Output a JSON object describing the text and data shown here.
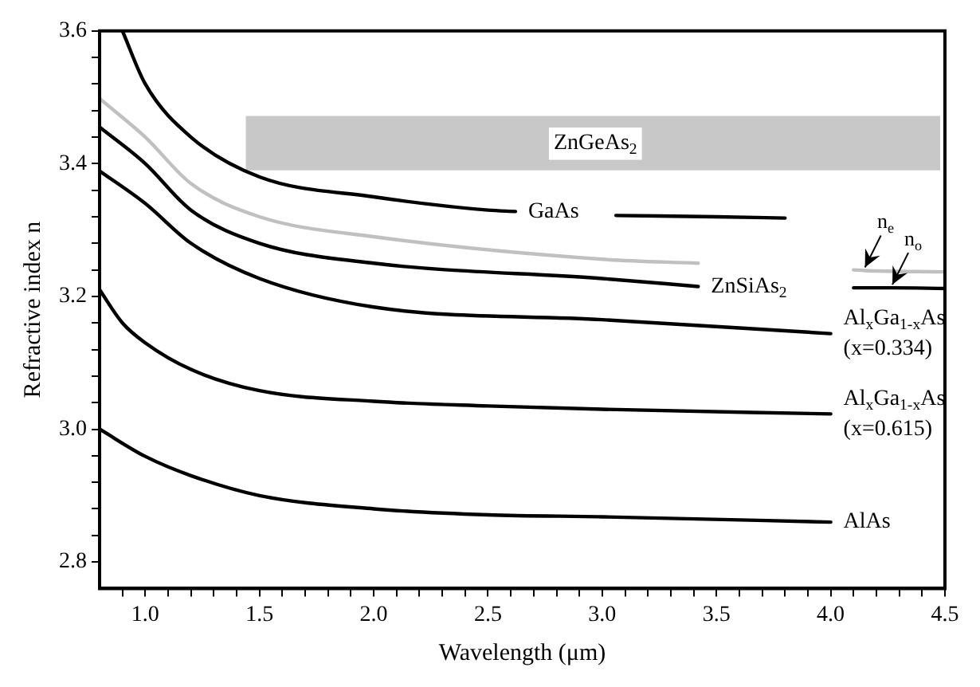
{
  "chart_data": {
    "type": "line",
    "xlabel": "Wavelength (μm)",
    "ylabel": "Refractive index n",
    "xlim": [
      0.8,
      4.5
    ],
    "ylim": [
      2.76,
      3.6
    ],
    "xticks": [
      {
        "value": 0.9,
        "label": null
      },
      {
        "value": 1.0,
        "label": "1.0"
      },
      {
        "value": 1.1,
        "label": null
      },
      {
        "value": 1.2,
        "label": null
      },
      {
        "value": 1.3,
        "label": null
      },
      {
        "value": 1.4,
        "label": null
      },
      1.5,
      {
        "value": 1.6,
        "label": null
      },
      {
        "value": 1.7,
        "label": null
      },
      {
        "value": 1.8,
        "label": null
      },
      {
        "value": 1.9,
        "label": null
      },
      {
        "value": 2.0,
        "label": "2.0"
      },
      {
        "value": 2.1,
        "label": null
      },
      {
        "value": 2.2,
        "label": null
      },
      {
        "value": 2.3,
        "label": null
      },
      {
        "value": 2.4,
        "label": null
      },
      2.5,
      {
        "value": 2.6,
        "label": null
      },
      {
        "value": 2.7,
        "label": null
      },
      {
        "value": 2.8,
        "label": null
      },
      {
        "value": 2.9,
        "label": null
      },
      {
        "value": 3.0,
        "label": "3.0"
      },
      {
        "value": 3.1,
        "label": null
      },
      {
        "value": 3.2,
        "label": null
      },
      {
        "value": 3.3,
        "label": null
      },
      {
        "value": 3.4,
        "label": null
      },
      3.5,
      {
        "value": 3.6,
        "label": null
      },
      {
        "value": 3.7,
        "label": null
      },
      {
        "value": 3.8,
        "label": null
      },
      {
        "value": 3.9,
        "label": null
      },
      {
        "value": 4.0,
        "label": "4.0"
      },
      {
        "value": 4.1,
        "label": null
      },
      {
        "value": 4.2,
        "label": null
      },
      {
        "value": 4.3,
        "label": null
      },
      {
        "value": 4.4,
        "label": null
      },
      4.5
    ],
    "yticks": [
      2.8,
      {
        "value": 2.84,
        "label": null
      },
      {
        "value": 2.88,
        "label": null
      },
      {
        "value": 2.92,
        "label": null
      },
      {
        "value": 2.96,
        "label": null
      },
      {
        "value": 3.0,
        "label": "3.0"
      },
      {
        "value": 3.04,
        "label": null
      },
      {
        "value": 3.08,
        "label": null
      },
      {
        "value": 3.12,
        "label": null
      },
      {
        "value": 3.16,
        "label": null
      },
      3.2,
      {
        "value": 3.24,
        "label": null
      },
      {
        "value": 3.28,
        "label": null
      },
      {
        "value": 3.32,
        "label": null
      },
      {
        "value": 3.36,
        "label": null
      },
      3.4,
      {
        "value": 3.44,
        "label": null
      },
      {
        "value": 3.48,
        "label": null
      },
      {
        "value": 3.52,
        "label": null
      },
      {
        "value": 3.56,
        "label": null
      },
      3.6
    ],
    "grid": false,
    "legend": false,
    "marker": "none",
    "line_style": "solid",
    "bands": [
      {
        "axis": "y",
        "from": 3.39,
        "to": 3.472,
        "color": "#c8c8c8",
        "label": "ZnGeAs$_{2}$"
      }
    ],
    "series": [
      {
        "color": "#000000",
        "x": [
          0.9,
          1.0,
          1.2,
          1.5,
          2.0,
          2.5,
          2.62,
          null,
          3.06,
          3.5,
          3.8
        ],
        "values": [
          3.6,
          3.52,
          3.44,
          3.38,
          3.35,
          3.33,
          3.328,
          null,
          3.322,
          3.32,
          3.318
        ]
      },
      {
        "name": "n$_{e}$",
        "color": "#c0c0c0",
        "x": [
          0.8,
          1.0,
          1.2,
          1.5,
          2.0,
          3.0,
          3.42,
          null,
          4.1,
          4.15,
          4.5
        ],
        "values": [
          3.498,
          3.44,
          3.37,
          3.32,
          3.29,
          3.256,
          3.25,
          null,
          3.24,
          3.239,
          3.237
        ]
      },
      {
        "name": "n$_{o}$",
        "color": "#000000",
        "x": [
          0.8,
          1.0,
          1.2,
          1.5,
          2.0,
          3.0,
          3.42,
          null,
          4.1,
          4.27,
          4.5
        ],
        "values": [
          3.455,
          3.4,
          3.33,
          3.28,
          3.25,
          3.227,
          3.215,
          null,
          3.213,
          3.213,
          3.212
        ]
      },
      {
        "color": "#000000",
        "x": [
          0.8,
          1.0,
          1.2,
          1.5,
          2.0,
          3.0,
          4.0
        ],
        "values": [
          3.389,
          3.34,
          3.28,
          3.227,
          3.184,
          3.165,
          3.144
        ]
      },
      {
        "color": "#000000",
        "x": [
          0.8,
          0.9,
          1.0,
          1.2,
          1.5,
          2.0,
          2.5,
          3.0,
          4.0
        ],
        "values": [
          3.21,
          3.16,
          3.13,
          3.09,
          3.058,
          3.042,
          3.035,
          3.03,
          3.023
        ]
      },
      {
        "color": "#000000",
        "x": [
          0.8,
          1.0,
          1.2,
          1.5,
          2.0,
          2.5,
          3.0,
          4.0
        ],
        "values": [
          3.0,
          2.959,
          2.93,
          2.9,
          2.88,
          2.871,
          2.868,
          2.86
        ]
      }
    ],
    "annotations": [
      {
        "text": "GaAs",
        "x": 2.62,
        "y": 3.328
      },
      {
        "text": "ZnSiAs$_{2}$",
        "x": 3.42,
        "y": 3.215
      },
      {
        "text": "Al$_{x}$Ga$_{1-x}$As\n(x=0.334)",
        "x": 4.0,
        "y": 3.144
      },
      {
        "text": "Al$_{x}$Ga$_{1-x}$As\n(x=0.615)",
        "x": 4.0,
        "y": 3.023
      },
      {
        "text": "AlAs",
        "x": 4.0,
        "y": 2.86
      }
    ]
  }
}
